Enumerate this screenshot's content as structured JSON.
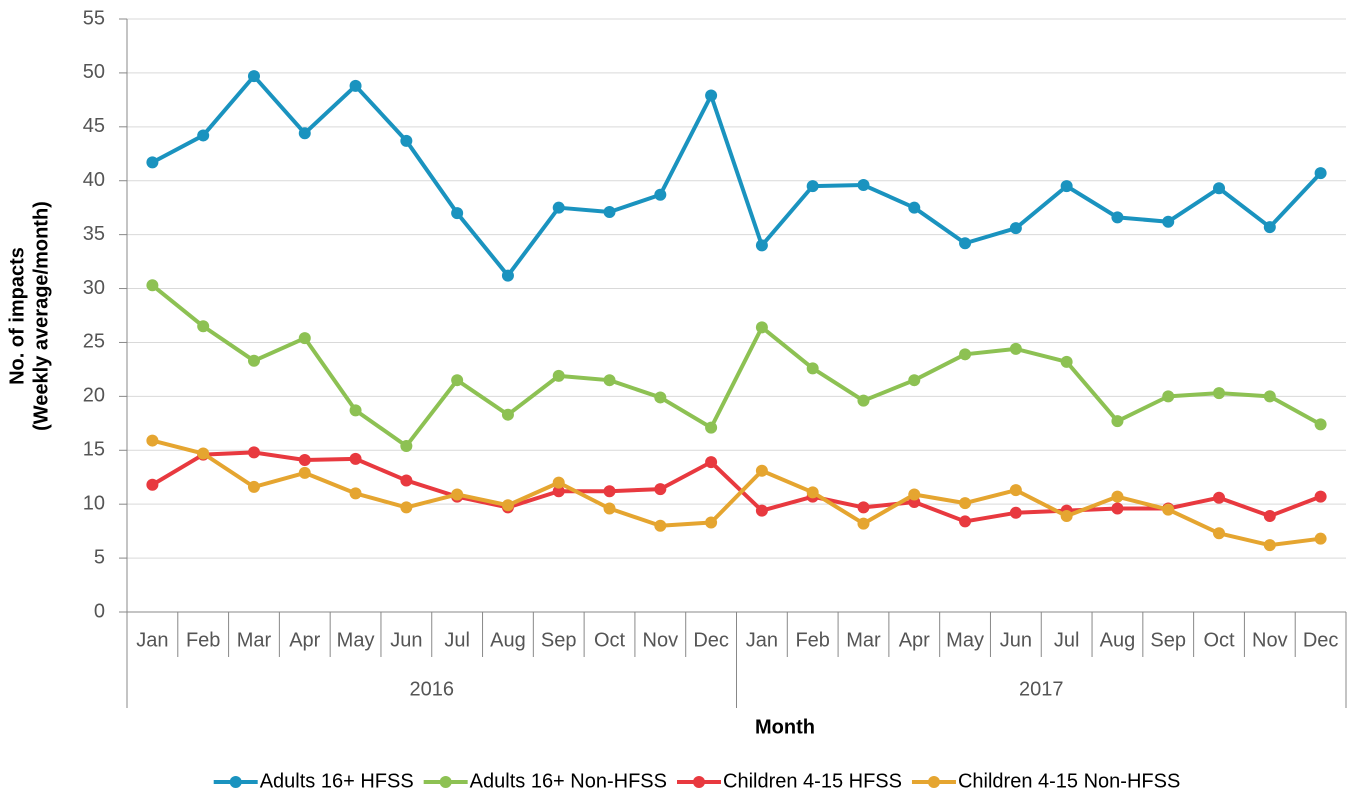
{
  "chart_data": {
    "type": "line",
    "y_label": [
      "No. of impacts",
      "(Weekly average/month)"
    ],
    "x_label": "Month",
    "categories": [
      "Jan",
      "Feb",
      "Mar",
      "Apr",
      "May",
      "Jun",
      "Jul",
      "Aug",
      "Sep",
      "Oct",
      "Nov",
      "Dec",
      "Jan",
      "Feb",
      "Mar",
      "Apr",
      "May",
      "Jun",
      "Jul",
      "Aug",
      "Sep",
      "Oct",
      "Nov",
      "Dec"
    ],
    "category_groups": [
      "2016",
      "2017"
    ],
    "ylim": [
      0,
      55
    ],
    "yticks": [
      0,
      5,
      10,
      15,
      20,
      25,
      30,
      35,
      40,
      45,
      50,
      55
    ],
    "grid": true,
    "legend": "bottom",
    "series": [
      {
        "name": "Adults 16+ HFSS",
        "color": "#1a93bf",
        "values": [
          41.7,
          44.2,
          49.7,
          44.4,
          48.8,
          43.7,
          37.0,
          31.2,
          37.5,
          37.1,
          38.7,
          47.9,
          34.0,
          39.5,
          39.6,
          37.5,
          34.2,
          35.6,
          39.5,
          36.6,
          36.2,
          39.3,
          35.7,
          40.7
        ]
      },
      {
        "name": "Adults 16+ Non-HFSS",
        "color": "#8dc153",
        "values": [
          30.3,
          26.5,
          23.3,
          25.4,
          18.7,
          15.4,
          21.5,
          18.3,
          21.9,
          21.5,
          19.9,
          17.1,
          26.4,
          22.6,
          19.6,
          21.5,
          23.9,
          24.4,
          23.2,
          17.7,
          20.0,
          20.3,
          20.0,
          17.4
        ]
      },
      {
        "name": "Children 4-15 HFSS",
        "color": "#e8393f",
        "values": [
          11.8,
          14.6,
          14.8,
          14.1,
          14.2,
          12.2,
          10.7,
          9.7,
          11.2,
          11.2,
          11.4,
          13.9,
          9.4,
          10.7,
          9.7,
          10.2,
          8.4,
          9.2,
          9.4,
          9.6,
          9.6,
          10.6,
          8.9,
          10.7
        ]
      },
      {
        "name": "Children 4-15 Non-HFSS",
        "color": "#e5a530",
        "values": [
          15.9,
          14.7,
          11.6,
          12.9,
          11.0,
          9.7,
          10.9,
          9.9,
          12.0,
          9.6,
          8.0,
          8.3,
          13.1,
          11.1,
          8.2,
          10.9,
          10.1,
          11.3,
          8.9,
          10.7,
          9.5,
          7.3,
          6.2,
          6.8
        ]
      }
    ]
  }
}
